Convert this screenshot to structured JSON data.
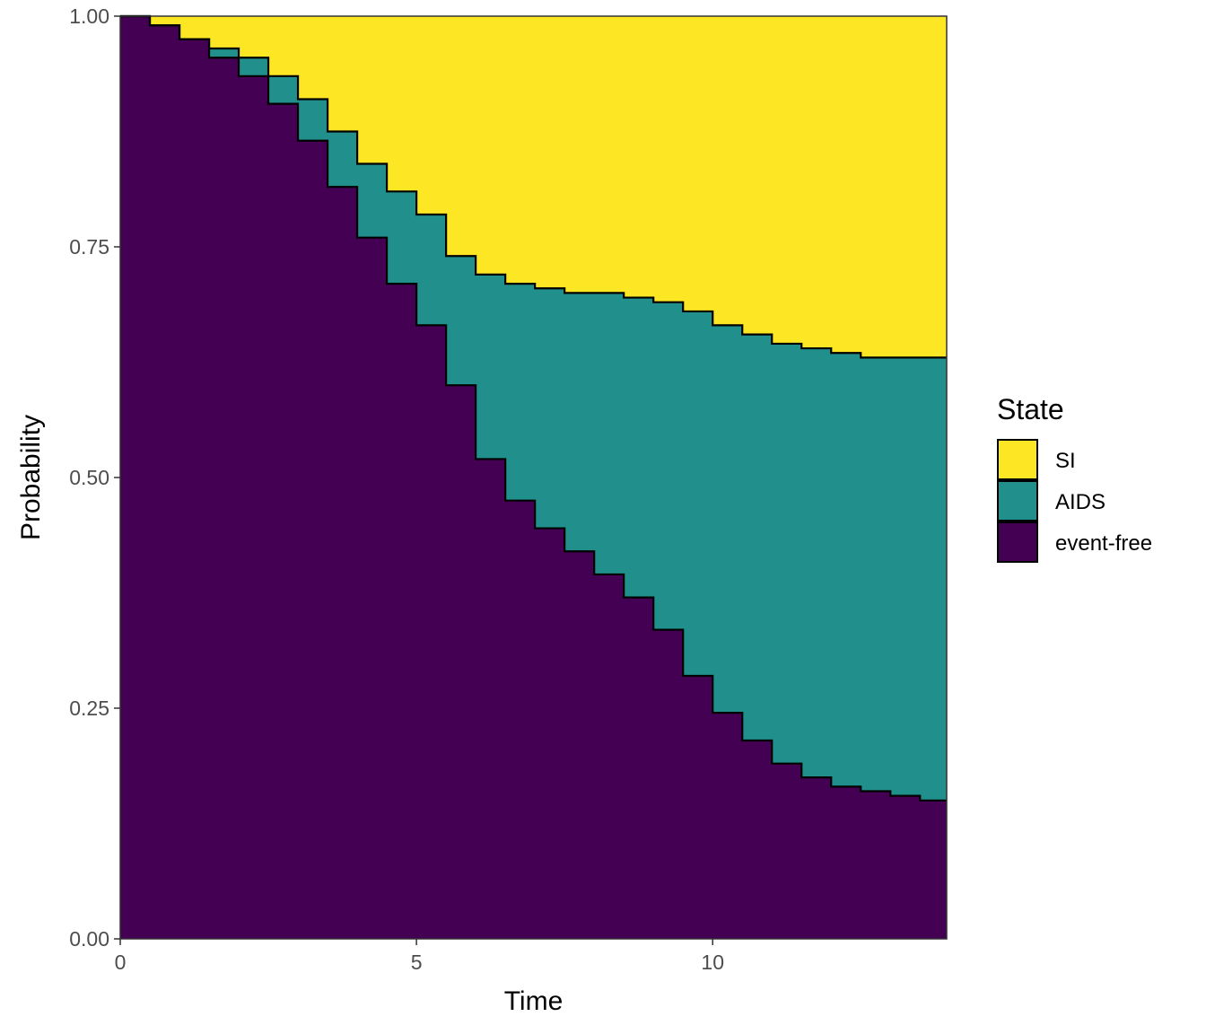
{
  "chart_data": {
    "type": "area",
    "stacked": true,
    "step": true,
    "xlabel": "Time",
    "ylabel": "Probability",
    "xlim": [
      0,
      13.95
    ],
    "ylim": [
      0,
      1
    ],
    "x_ticks": [
      {
        "value": 0,
        "label": "0"
      },
      {
        "value": 5,
        "label": "5"
      },
      {
        "value": 10,
        "label": "10"
      }
    ],
    "y_ticks": [
      {
        "value": 0,
        "label": "0.00"
      },
      {
        "value": 0.25,
        "label": "0.25"
      },
      {
        "value": 0.5,
        "label": "0.50"
      },
      {
        "value": 0.75,
        "label": "0.75"
      },
      {
        "value": 1,
        "label": "1.00"
      }
    ],
    "grid": false,
    "legend": {
      "title": "State",
      "placement": "right",
      "entries": [
        {
          "label": "SI",
          "color": "#fde725"
        },
        {
          "label": "AIDS",
          "color": "#21908c"
        },
        {
          "label": "event-free",
          "color": "#440154"
        }
      ]
    },
    "x": [
      0,
      0.5,
      1.0,
      1.5,
      2.0,
      2.5,
      3.0,
      3.5,
      4.0,
      4.5,
      5.0,
      5.5,
      6.0,
      6.5,
      7.0,
      7.5,
      8.0,
      8.5,
      9.0,
      9.5,
      10.0,
      10.5,
      11.0,
      11.5,
      12.0,
      12.5,
      13.0,
      13.5,
      13.95
    ],
    "series": [
      {
        "name": "event-free",
        "color": "#440154",
        "values": [
          1.0,
          0.99,
          0.975,
          0.955,
          0.935,
          0.905,
          0.865,
          0.815,
          0.76,
          0.71,
          0.665,
          0.6,
          0.52,
          0.475,
          0.445,
          0.42,
          0.395,
          0.37,
          0.335,
          0.285,
          0.245,
          0.215,
          0.19,
          0.175,
          0.165,
          0.16,
          0.155,
          0.15,
          0.15
        ]
      },
      {
        "name": "AIDS",
        "color": "#21908c",
        "values": [
          0.0,
          0.0,
          0.0,
          0.01,
          0.02,
          0.03,
          0.045,
          0.06,
          0.08,
          0.1,
          0.12,
          0.14,
          0.2,
          0.235,
          0.26,
          0.28,
          0.305,
          0.325,
          0.355,
          0.395,
          0.42,
          0.44,
          0.455,
          0.465,
          0.47,
          0.47,
          0.475,
          0.48,
          0.48
        ]
      },
      {
        "name": "SI",
        "color": "#fde725",
        "values": [
          0.0,
          0.01,
          0.025,
          0.035,
          0.045,
          0.065,
          0.09,
          0.125,
          0.16,
          0.19,
          0.215,
          0.26,
          0.28,
          0.29,
          0.295,
          0.3,
          0.3,
          0.305,
          0.31,
          0.32,
          0.335,
          0.345,
          0.355,
          0.36,
          0.365,
          0.37,
          0.37,
          0.37,
          0.37
        ]
      }
    ]
  }
}
